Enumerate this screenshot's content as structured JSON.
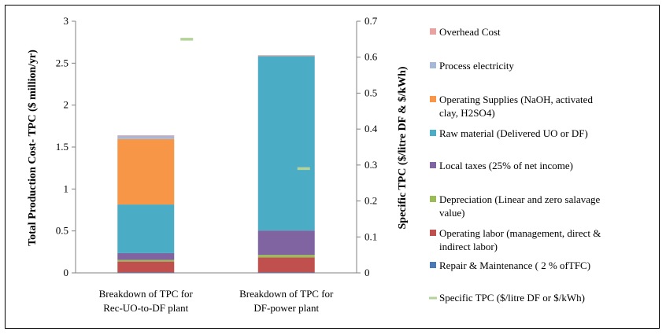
{
  "chart_data": {
    "type": "bar",
    "stacked": true,
    "categories": [
      [
        "Breakdown of TPC for",
        "Rec-UO-to-DF plant"
      ],
      [
        "Breakdown of TPC for",
        "DF-power plant"
      ]
    ],
    "ylabel": "Total Production Cost- TPC ($ million/yr)",
    "y2label": "Specific TPC ($/litre DF & $/kWh)",
    "ylim": [
      0,
      3
    ],
    "yticks": [
      "0",
      "0.5",
      "1",
      "1.5",
      "2",
      "2.5",
      "3"
    ],
    "y2lim": [
      0,
      0.7
    ],
    "y2ticks": [
      "0",
      "0.1",
      "0.2",
      "0.3",
      "0.4",
      "0.5",
      "0.6",
      "0.7"
    ],
    "series": [
      {
        "name": "Repair & Maintenance ( 2 % ofTFC)",
        "lines": [
          "Repair & Maintenance ( 2 % ofTFC)"
        ],
        "color": "#4a7ab5",
        "values": [
          0.005,
          0.005
        ]
      },
      {
        "name": "Operating labor (management, direct & indirect labor)",
        "lines": [
          "Operating labor (management, direct &",
          "indirect labor)"
        ],
        "color": "#c0504d",
        "values": [
          0.13,
          0.18
        ]
      },
      {
        "name": "Depreciation (Linear and zero salavage value)",
        "lines": [
          "Depreciation (Linear and zero salavage",
          "value)"
        ],
        "color": "#9bbb59",
        "values": [
          0.02,
          0.03
        ]
      },
      {
        "name": "Local taxes (25% of net income)",
        "lines": [
          "Local taxes (25% of net income)"
        ],
        "color": "#8064a2",
        "values": [
          0.08,
          0.29
        ]
      },
      {
        "name": "Raw material (Delivered UO or DF)",
        "lines": [
          "Raw material (Delivered UO or DF)"
        ],
        "color": "#4bacc6",
        "values": [
          0.58,
          2.08
        ]
      },
      {
        "name": "Operating Supplies  (NaOH, activated clay, H2SO4)",
        "lines": [
          "Operating Supplies  (NaOH, activated",
          "clay, H2SO4)"
        ],
        "color": "#f79646",
        "values": [
          0.78,
          0.0
        ]
      },
      {
        "name": "Process electricity",
        "lines": [
          "Process electricity"
        ],
        "color": "#a5b8d8",
        "values": [
          0.04,
          0.0
        ]
      },
      {
        "name": "Overhead Cost",
        "lines": [
          "Overhead Cost"
        ],
        "color": "#e6a3a1",
        "values": [
          0.005,
          0.01
        ]
      }
    ],
    "specific_tpc": {
      "name": "Specific TPC ($/litre DF or $/kWh)",
      "lines": [
        "Specific TPC ($/litre DF or $/kWh)"
      ],
      "color": "#b3d39a",
      "axis": "y2",
      "values": [
        0.65,
        0.29
      ]
    }
  }
}
